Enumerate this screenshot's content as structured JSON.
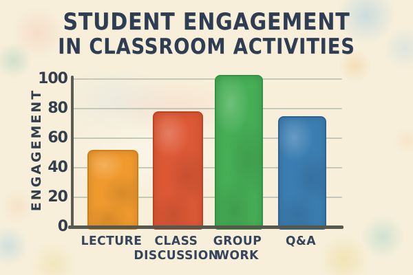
{
  "title": {
    "line1": "STUDENT ENGAGEMENT",
    "line2": "IN CLASSROOM ACTIVITIES"
  },
  "chart_data": {
    "type": "bar",
    "title": "Student Engagement in Classroom Activities",
    "categories": [
      "Lecture",
      "Class Discussion",
      "Group Work",
      "Q&A"
    ],
    "category_labels": [
      [
        "LECTURE"
      ],
      [
        "CLASS",
        "DISCUSSION"
      ],
      [
        "GROUP",
        "WORK"
      ],
      [
        "Q&A"
      ]
    ],
    "values": [
      52,
      78,
      103,
      75
    ],
    "bar_colors": [
      "#F09A2E",
      "#DD5936",
      "#46AE55",
      "#3C7EB2"
    ],
    "bar_edge_colors": [
      "#D57D14",
      "#C04120",
      "#2F9441",
      "#2B6492"
    ],
    "ylabel": "ENGAGEMENT",
    "xlabel": "",
    "yticks": [
      0,
      20,
      40,
      60,
      80,
      100
    ],
    "ylim": [
      0,
      110
    ],
    "grid": true,
    "legend": false
  },
  "colors": {
    "background": "#F7EFDA",
    "title_text": "#2E3D52",
    "axis": "#5A5E52",
    "gridline": "#BCC1B0",
    "tick_text": "#333F4D"
  }
}
